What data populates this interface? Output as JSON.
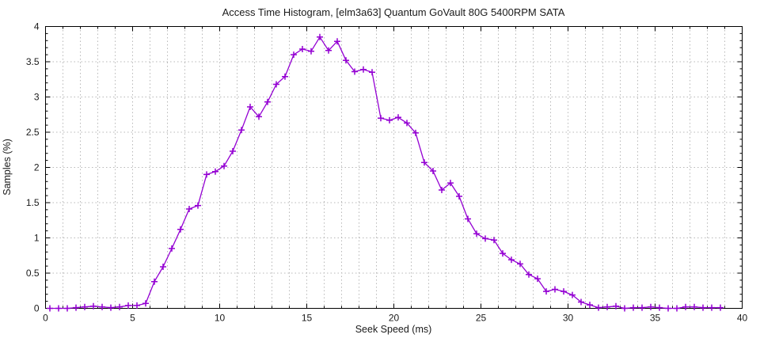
{
  "chart_data": {
    "type": "line",
    "title": "Access Time Histogram, [elm3a63] Quantum GoVault 80G 5400RPM SATA",
    "xlabel": "Seek Speed (ms)",
    "ylabel": "Samples (%)",
    "xlim": [
      0,
      40
    ],
    "ylim": [
      0,
      4
    ],
    "xticks": [
      0,
      5,
      10,
      15,
      20,
      25,
      30,
      35,
      40
    ],
    "xtick_labels": [
      "0",
      "5",
      "10",
      "15",
      "20",
      "25",
      "30",
      "35",
      "40"
    ],
    "x_minor_step": 1,
    "yticks": [
      0,
      0.5,
      1,
      1.5,
      2,
      2.5,
      3,
      3.5,
      4
    ],
    "ytick_labels": [
      "0",
      "0.5",
      "1",
      "1.5",
      "2",
      "2.5",
      "3",
      "3.5",
      "4"
    ],
    "y_minor_step": 0.1,
    "grid": "dotted",
    "legend_position": "none",
    "colors": {
      "line": "#9400d3",
      "grid": "#b8b8b8",
      "border": "#000000",
      "text": "#1a1a1a"
    },
    "marker": "plus",
    "series": [
      {
        "name": "samples",
        "x": [
          0.25,
          0.75,
          1.25,
          1.75,
          2.25,
          2.75,
          3.25,
          3.75,
          4.25,
          4.75,
          5.25,
          5.75,
          6.25,
          6.75,
          7.25,
          7.75,
          8.25,
          8.75,
          9.25,
          9.75,
          10.25,
          10.75,
          11.25,
          11.75,
          12.25,
          12.75,
          13.25,
          13.75,
          14.25,
          14.75,
          15.25,
          15.75,
          16.25,
          16.75,
          17.25,
          17.75,
          18.25,
          18.75,
          19.25,
          19.75,
          20.25,
          20.75,
          21.25,
          21.75,
          22.25,
          22.75,
          23.25,
          23.75,
          24.25,
          24.75,
          25.25,
          25.75,
          26.25,
          26.75,
          27.25,
          27.75,
          28.25,
          28.75,
          29.25,
          29.75,
          30.25,
          30.75,
          31.25,
          31.75,
          32.25,
          32.75,
          33.25,
          33.75,
          34.25,
          34.75,
          35.25,
          35.75,
          36.25,
          36.75,
          37.25,
          37.75,
          38.25,
          38.75
        ],
        "y": [
          0,
          0,
          0,
          0.01,
          0.02,
          0.03,
          0.02,
          0.01,
          0.02,
          0.04,
          0.04,
          0.07,
          0.38,
          0.59,
          0.85,
          1.12,
          1.41,
          1.46,
          1.9,
          1.94,
          2.02,
          2.23,
          2.53,
          2.86,
          2.72,
          2.93,
          3.18,
          3.29,
          3.6,
          3.68,
          3.65,
          3.85,
          3.66,
          3.79,
          3.52,
          3.36,
          3.39,
          3.35,
          2.7,
          2.67,
          2.71,
          2.63,
          2.49,
          2.07,
          1.95,
          1.68,
          1.78,
          1.59,
          1.27,
          1.06,
          0.99,
          0.97,
          0.78,
          0.69,
          0.63,
          0.48,
          0.42,
          0.24,
          0.27,
          0.24,
          0.19,
          0.09,
          0.05,
          0.01,
          0.02,
          0.03,
          0,
          0.01,
          0.01,
          0.02,
          0.01,
          0,
          0,
          0.02,
          0.02,
          0.01,
          0.01,
          0.01
        ]
      }
    ]
  }
}
